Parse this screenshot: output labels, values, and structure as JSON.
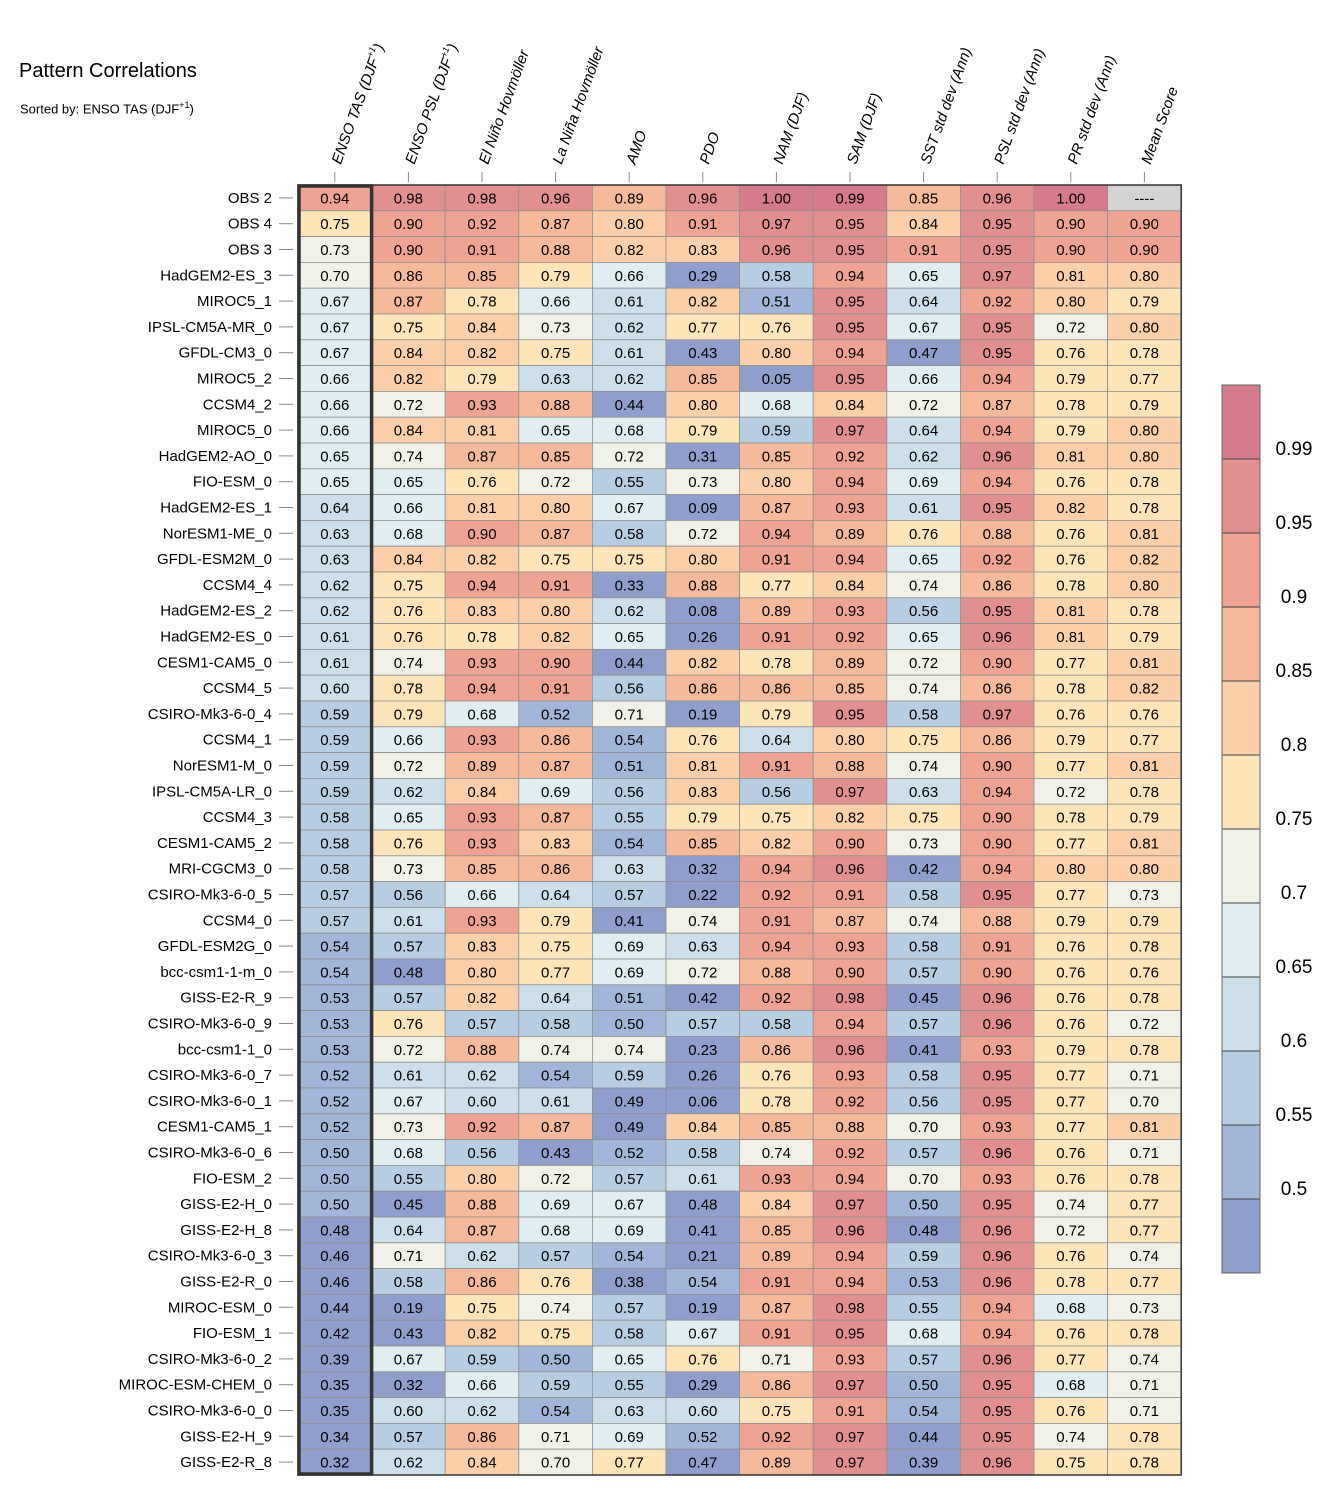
{
  "title": "Pattern Correlations",
  "subtitle_prefix": "Sorted by: ENSO TAS (DJF",
  "subtitle_sup": "+1",
  "subtitle_suffix": ")",
  "chart_data": {
    "type": "heatmap",
    "columns": [
      {
        "label": "ENSO TAS (DJF",
        "sup": "+1",
        "suffix": ")"
      },
      {
        "label": "ENSO PSL (DJF",
        "sup": "+1",
        "suffix": ")"
      },
      {
        "label": "El Niño Hovmöller",
        "sup": "",
        "suffix": ""
      },
      {
        "label": "La Niña Hovmöller",
        "sup": "",
        "suffix": ""
      },
      {
        "label": "AMO",
        "sup": "",
        "suffix": ""
      },
      {
        "label": "PDO",
        "sup": "",
        "suffix": ""
      },
      {
        "label": "NAM (DJF)",
        "sup": "",
        "suffix": ""
      },
      {
        "label": "SAM (DJF)",
        "sup": "",
        "suffix": ""
      },
      {
        "label": "SST std dev (Ann)",
        "sup": "",
        "suffix": ""
      },
      {
        "label": "PSL std dev (Ann)",
        "sup": "",
        "suffix": ""
      },
      {
        "label": "PR std dev (Ann)",
        "sup": "",
        "suffix": ""
      },
      {
        "label": "Mean Score",
        "sup": "",
        "suffix": ""
      }
    ],
    "rows": [
      {
        "name": "OBS 2",
        "values": [
          "0.94",
          "0.98",
          "0.98",
          "0.96",
          "0.89",
          "0.96",
          "1.00",
          "0.99",
          "0.85",
          "0.96",
          "1.00",
          "----"
        ]
      },
      {
        "name": "OBS 4",
        "values": [
          "0.75",
          "0.90",
          "0.92",
          "0.87",
          "0.80",
          "0.91",
          "0.97",
          "0.95",
          "0.84",
          "0.95",
          "0.90",
          "0.90"
        ]
      },
      {
        "name": "OBS 3",
        "values": [
          "0.73",
          "0.90",
          "0.91",
          "0.88",
          "0.82",
          "0.83",
          "0.96",
          "0.95",
          "0.91",
          "0.95",
          "0.90",
          "0.90"
        ]
      },
      {
        "name": "HadGEM2-ES_3",
        "values": [
          "0.70",
          "0.86",
          "0.85",
          "0.79",
          "0.66",
          "0.29",
          "0.58",
          "0.94",
          "0.65",
          "0.97",
          "0.81",
          "0.80"
        ]
      },
      {
        "name": "MIROC5_1",
        "values": [
          "0.67",
          "0.87",
          "0.78",
          "0.66",
          "0.61",
          "0.82",
          "0.51",
          "0.95",
          "0.64",
          "0.92",
          "0.80",
          "0.79"
        ]
      },
      {
        "name": "IPSL-CM5A-MR_0",
        "values": [
          "0.67",
          "0.75",
          "0.84",
          "0.73",
          "0.62",
          "0.77",
          "0.76",
          "0.95",
          "0.67",
          "0.95",
          "0.72",
          "0.80"
        ]
      },
      {
        "name": "GFDL-CM3_0",
        "values": [
          "0.67",
          "0.84",
          "0.82",
          "0.75",
          "0.61",
          "0.43",
          "0.80",
          "0.94",
          "0.47",
          "0.95",
          "0.76",
          "0.78"
        ]
      },
      {
        "name": "MIROC5_2",
        "values": [
          "0.66",
          "0.82",
          "0.79",
          "0.63",
          "0.62",
          "0.85",
          "0.05",
          "0.95",
          "0.66",
          "0.94",
          "0.79",
          "0.77"
        ]
      },
      {
        "name": "CCSM4_2",
        "values": [
          "0.66",
          "0.72",
          "0.93",
          "0.88",
          "0.44",
          "0.80",
          "0.68",
          "0.84",
          "0.72",
          "0.87",
          "0.78",
          "0.79"
        ]
      },
      {
        "name": "MIROC5_0",
        "values": [
          "0.66",
          "0.84",
          "0.81",
          "0.65",
          "0.68",
          "0.79",
          "0.59",
          "0.97",
          "0.64",
          "0.94",
          "0.79",
          "0.80"
        ]
      },
      {
        "name": "HadGEM2-AO_0",
        "values": [
          "0.65",
          "0.74",
          "0.87",
          "0.85",
          "0.72",
          "0.31",
          "0.85",
          "0.92",
          "0.62",
          "0.96",
          "0.81",
          "0.80"
        ]
      },
      {
        "name": "FIO-ESM_0",
        "values": [
          "0.65",
          "0.65",
          "0.76",
          "0.72",
          "0.55",
          "0.73",
          "0.80",
          "0.94",
          "0.69",
          "0.94",
          "0.76",
          "0.78"
        ]
      },
      {
        "name": "HadGEM2-ES_1",
        "values": [
          "0.64",
          "0.66",
          "0.81",
          "0.80",
          "0.67",
          "0.09",
          "0.87",
          "0.93",
          "0.61",
          "0.95",
          "0.82",
          "0.78"
        ]
      },
      {
        "name": "NorESM1-ME_0",
        "values": [
          "0.63",
          "0.68",
          "0.90",
          "0.87",
          "0.58",
          "0.72",
          "0.94",
          "0.89",
          "0.76",
          "0.88",
          "0.76",
          "0.81"
        ]
      },
      {
        "name": "GFDL-ESM2M_0",
        "values": [
          "0.63",
          "0.84",
          "0.82",
          "0.75",
          "0.75",
          "0.80",
          "0.91",
          "0.94",
          "0.65",
          "0.92",
          "0.76",
          "0.82"
        ]
      },
      {
        "name": "CCSM4_4",
        "values": [
          "0.62",
          "0.75",
          "0.94",
          "0.91",
          "0.33",
          "0.88",
          "0.77",
          "0.84",
          "0.74",
          "0.86",
          "0.78",
          "0.80"
        ]
      },
      {
        "name": "HadGEM2-ES_2",
        "values": [
          "0.62",
          "0.76",
          "0.83",
          "0.80",
          "0.62",
          "0.08",
          "0.89",
          "0.93",
          "0.56",
          "0.95",
          "0.81",
          "0.78"
        ]
      },
      {
        "name": "HadGEM2-ES_0",
        "values": [
          "0.61",
          "0.76",
          "0.78",
          "0.82",
          "0.65",
          "0.26",
          "0.91",
          "0.92",
          "0.65",
          "0.96",
          "0.81",
          "0.79"
        ]
      },
      {
        "name": "CESM1-CAM5_0",
        "values": [
          "0.61",
          "0.74",
          "0.93",
          "0.90",
          "0.44",
          "0.82",
          "0.78",
          "0.89",
          "0.72",
          "0.90",
          "0.77",
          "0.81"
        ]
      },
      {
        "name": "CCSM4_5",
        "values": [
          "0.60",
          "0.78",
          "0.94",
          "0.91",
          "0.56",
          "0.86",
          "0.86",
          "0.85",
          "0.74",
          "0.86",
          "0.78",
          "0.82"
        ]
      },
      {
        "name": "CSIRO-Mk3-6-0_4",
        "values": [
          "0.59",
          "0.79",
          "0.68",
          "0.52",
          "0.71",
          "0.19",
          "0.79",
          "0.95",
          "0.58",
          "0.97",
          "0.76",
          "0.76"
        ]
      },
      {
        "name": "CCSM4_1",
        "values": [
          "0.59",
          "0.66",
          "0.93",
          "0.86",
          "0.54",
          "0.76",
          "0.64",
          "0.80",
          "0.75",
          "0.86",
          "0.79",
          "0.77"
        ]
      },
      {
        "name": "NorESM1-M_0",
        "values": [
          "0.59",
          "0.72",
          "0.89",
          "0.87",
          "0.51",
          "0.81",
          "0.91",
          "0.88",
          "0.74",
          "0.90",
          "0.77",
          "0.81"
        ]
      },
      {
        "name": "IPSL-CM5A-LR_0",
        "values": [
          "0.59",
          "0.62",
          "0.84",
          "0.69",
          "0.56",
          "0.83",
          "0.56",
          "0.97",
          "0.63",
          "0.94",
          "0.72",
          "0.78"
        ]
      },
      {
        "name": "CCSM4_3",
        "values": [
          "0.58",
          "0.65",
          "0.93",
          "0.87",
          "0.55",
          "0.79",
          "0.75",
          "0.82",
          "0.75",
          "0.90",
          "0.78",
          "0.79"
        ]
      },
      {
        "name": "CESM1-CAM5_2",
        "values": [
          "0.58",
          "0.76",
          "0.93",
          "0.83",
          "0.54",
          "0.85",
          "0.82",
          "0.90",
          "0.73",
          "0.90",
          "0.77",
          "0.81"
        ]
      },
      {
        "name": "MRI-CGCM3_0",
        "values": [
          "0.58",
          "0.73",
          "0.85",
          "0.86",
          "0.63",
          "0.32",
          "0.94",
          "0.96",
          "0.42",
          "0.94",
          "0.80",
          "0.80"
        ]
      },
      {
        "name": "CSIRO-Mk3-6-0_5",
        "values": [
          "0.57",
          "0.56",
          "0.66",
          "0.64",
          "0.57",
          "0.22",
          "0.92",
          "0.91",
          "0.58",
          "0.95",
          "0.77",
          "0.73"
        ]
      },
      {
        "name": "CCSM4_0",
        "values": [
          "0.57",
          "0.61",
          "0.93",
          "0.79",
          "0.41",
          "0.74",
          "0.91",
          "0.87",
          "0.74",
          "0.88",
          "0.79",
          "0.79"
        ]
      },
      {
        "name": "GFDL-ESM2G_0",
        "values": [
          "0.54",
          "0.57",
          "0.83",
          "0.75",
          "0.69",
          "0.63",
          "0.94",
          "0.93",
          "0.58",
          "0.91",
          "0.76",
          "0.78"
        ]
      },
      {
        "name": "bcc-csm1-1-m_0",
        "values": [
          "0.54",
          "0.48",
          "0.80",
          "0.77",
          "0.69",
          "0.72",
          "0.88",
          "0.90",
          "0.57",
          "0.90",
          "0.76",
          "0.76"
        ]
      },
      {
        "name": "GISS-E2-R_9",
        "values": [
          "0.53",
          "0.57",
          "0.82",
          "0.64",
          "0.51",
          "0.42",
          "0.92",
          "0.98",
          "0.45",
          "0.96",
          "0.76",
          "0.78"
        ]
      },
      {
        "name": "CSIRO-Mk3-6-0_9",
        "values": [
          "0.53",
          "0.76",
          "0.57",
          "0.58",
          "0.50",
          "0.57",
          "0.58",
          "0.94",
          "0.57",
          "0.96",
          "0.76",
          "0.72"
        ]
      },
      {
        "name": "bcc-csm1-1_0",
        "values": [
          "0.53",
          "0.72",
          "0.88",
          "0.74",
          "0.74",
          "0.23",
          "0.86",
          "0.96",
          "0.41",
          "0.93",
          "0.79",
          "0.78"
        ]
      },
      {
        "name": "CSIRO-Mk3-6-0_7",
        "values": [
          "0.52",
          "0.61",
          "0.62",
          "0.54",
          "0.59",
          "0.26",
          "0.76",
          "0.93",
          "0.58",
          "0.95",
          "0.77",
          "0.71"
        ]
      },
      {
        "name": "CSIRO-Mk3-6-0_1",
        "values": [
          "0.52",
          "0.67",
          "0.60",
          "0.61",
          "0.49",
          "0.06",
          "0.78",
          "0.92",
          "0.56",
          "0.95",
          "0.77",
          "0.70"
        ]
      },
      {
        "name": "CESM1-CAM5_1",
        "values": [
          "0.52",
          "0.73",
          "0.92",
          "0.87",
          "0.49",
          "0.84",
          "0.85",
          "0.88",
          "0.70",
          "0.93",
          "0.77",
          "0.81"
        ]
      },
      {
        "name": "CSIRO-Mk3-6-0_6",
        "values": [
          "0.50",
          "0.68",
          "0.56",
          "0.43",
          "0.52",
          "0.58",
          "0.74",
          "0.92",
          "0.57",
          "0.96",
          "0.76",
          "0.71"
        ]
      },
      {
        "name": "FIO-ESM_2",
        "values": [
          "0.50",
          "0.55",
          "0.80",
          "0.72",
          "0.57",
          "0.61",
          "0.93",
          "0.94",
          "0.70",
          "0.93",
          "0.76",
          "0.78"
        ]
      },
      {
        "name": "GISS-E2-H_0",
        "values": [
          "0.50",
          "0.45",
          "0.88",
          "0.69",
          "0.67",
          "0.48",
          "0.84",
          "0.97",
          "0.50",
          "0.95",
          "0.74",
          "0.77"
        ]
      },
      {
        "name": "GISS-E2-H_8",
        "values": [
          "0.48",
          "0.64",
          "0.87",
          "0.68",
          "0.69",
          "0.41",
          "0.85",
          "0.96",
          "0.48",
          "0.96",
          "0.72",
          "0.77"
        ]
      },
      {
        "name": "CSIRO-Mk3-6-0_3",
        "values": [
          "0.46",
          "0.71",
          "0.62",
          "0.57",
          "0.54",
          "0.21",
          "0.89",
          "0.94",
          "0.59",
          "0.96",
          "0.76",
          "0.74"
        ]
      },
      {
        "name": "GISS-E2-R_0",
        "values": [
          "0.46",
          "0.58",
          "0.86",
          "0.76",
          "0.38",
          "0.54",
          "0.91",
          "0.94",
          "0.53",
          "0.96",
          "0.78",
          "0.77"
        ]
      },
      {
        "name": "MIROC-ESM_0",
        "values": [
          "0.44",
          "0.19",
          "0.75",
          "0.74",
          "0.57",
          "0.19",
          "0.87",
          "0.98",
          "0.55",
          "0.94",
          "0.68",
          "0.73"
        ]
      },
      {
        "name": "FIO-ESM_1",
        "values": [
          "0.42",
          "0.43",
          "0.82",
          "0.75",
          "0.58",
          "0.67",
          "0.91",
          "0.95",
          "0.68",
          "0.94",
          "0.76",
          "0.78"
        ]
      },
      {
        "name": "CSIRO-Mk3-6-0_2",
        "values": [
          "0.39",
          "0.67",
          "0.59",
          "0.50",
          "0.65",
          "0.76",
          "0.71",
          "0.93",
          "0.57",
          "0.96",
          "0.77",
          "0.74"
        ]
      },
      {
        "name": "MIROC-ESM-CHEM_0",
        "values": [
          "0.35",
          "0.32",
          "0.66",
          "0.59",
          "0.55",
          "0.29",
          "0.86",
          "0.97",
          "0.50",
          "0.95",
          "0.68",
          "0.71"
        ]
      },
      {
        "name": "CSIRO-Mk3-6-0_0",
        "values": [
          "0.35",
          "0.60",
          "0.62",
          "0.54",
          "0.63",
          "0.60",
          "0.75",
          "0.91",
          "0.54",
          "0.95",
          "0.76",
          "0.71"
        ]
      },
      {
        "name": "GISS-E2-H_9",
        "values": [
          "0.34",
          "0.57",
          "0.86",
          "0.71",
          "0.69",
          "0.52",
          "0.92",
          "0.97",
          "0.44",
          "0.95",
          "0.74",
          "0.78"
        ]
      },
      {
        "name": "GISS-E2-R_8",
        "values": [
          "0.32",
          "0.62",
          "0.84",
          "0.70",
          "0.77",
          "0.47",
          "0.89",
          "0.97",
          "0.39",
          "0.96",
          "0.75",
          "0.78"
        ]
      }
    ],
    "highlighted_column": "ENSO TAS (DJF+1)",
    "missing_color": "#d3d3d3",
    "colorbar": {
      "ticks": [
        "0.99",
        "0.95",
        "0.9",
        "0.85",
        "0.8",
        "0.75",
        "0.7",
        "0.65",
        "0.6",
        "0.55",
        "0.5"
      ],
      "levels": [
        0.99,
        0.95,
        0.9,
        0.85,
        0.8,
        0.75,
        0.7,
        0.65,
        0.6,
        0.55,
        0.5
      ],
      "colors": [
        "#d57b8c",
        "#e28f8f",
        "#eea393",
        "#f5b99c",
        "#fbcfa9",
        "#fde4b9",
        "#f1f1e8",
        "#e0eef2",
        "#ccdfea",
        "#b7cde2",
        "#a1b6d8",
        "#8f9ecb"
      ]
    }
  }
}
